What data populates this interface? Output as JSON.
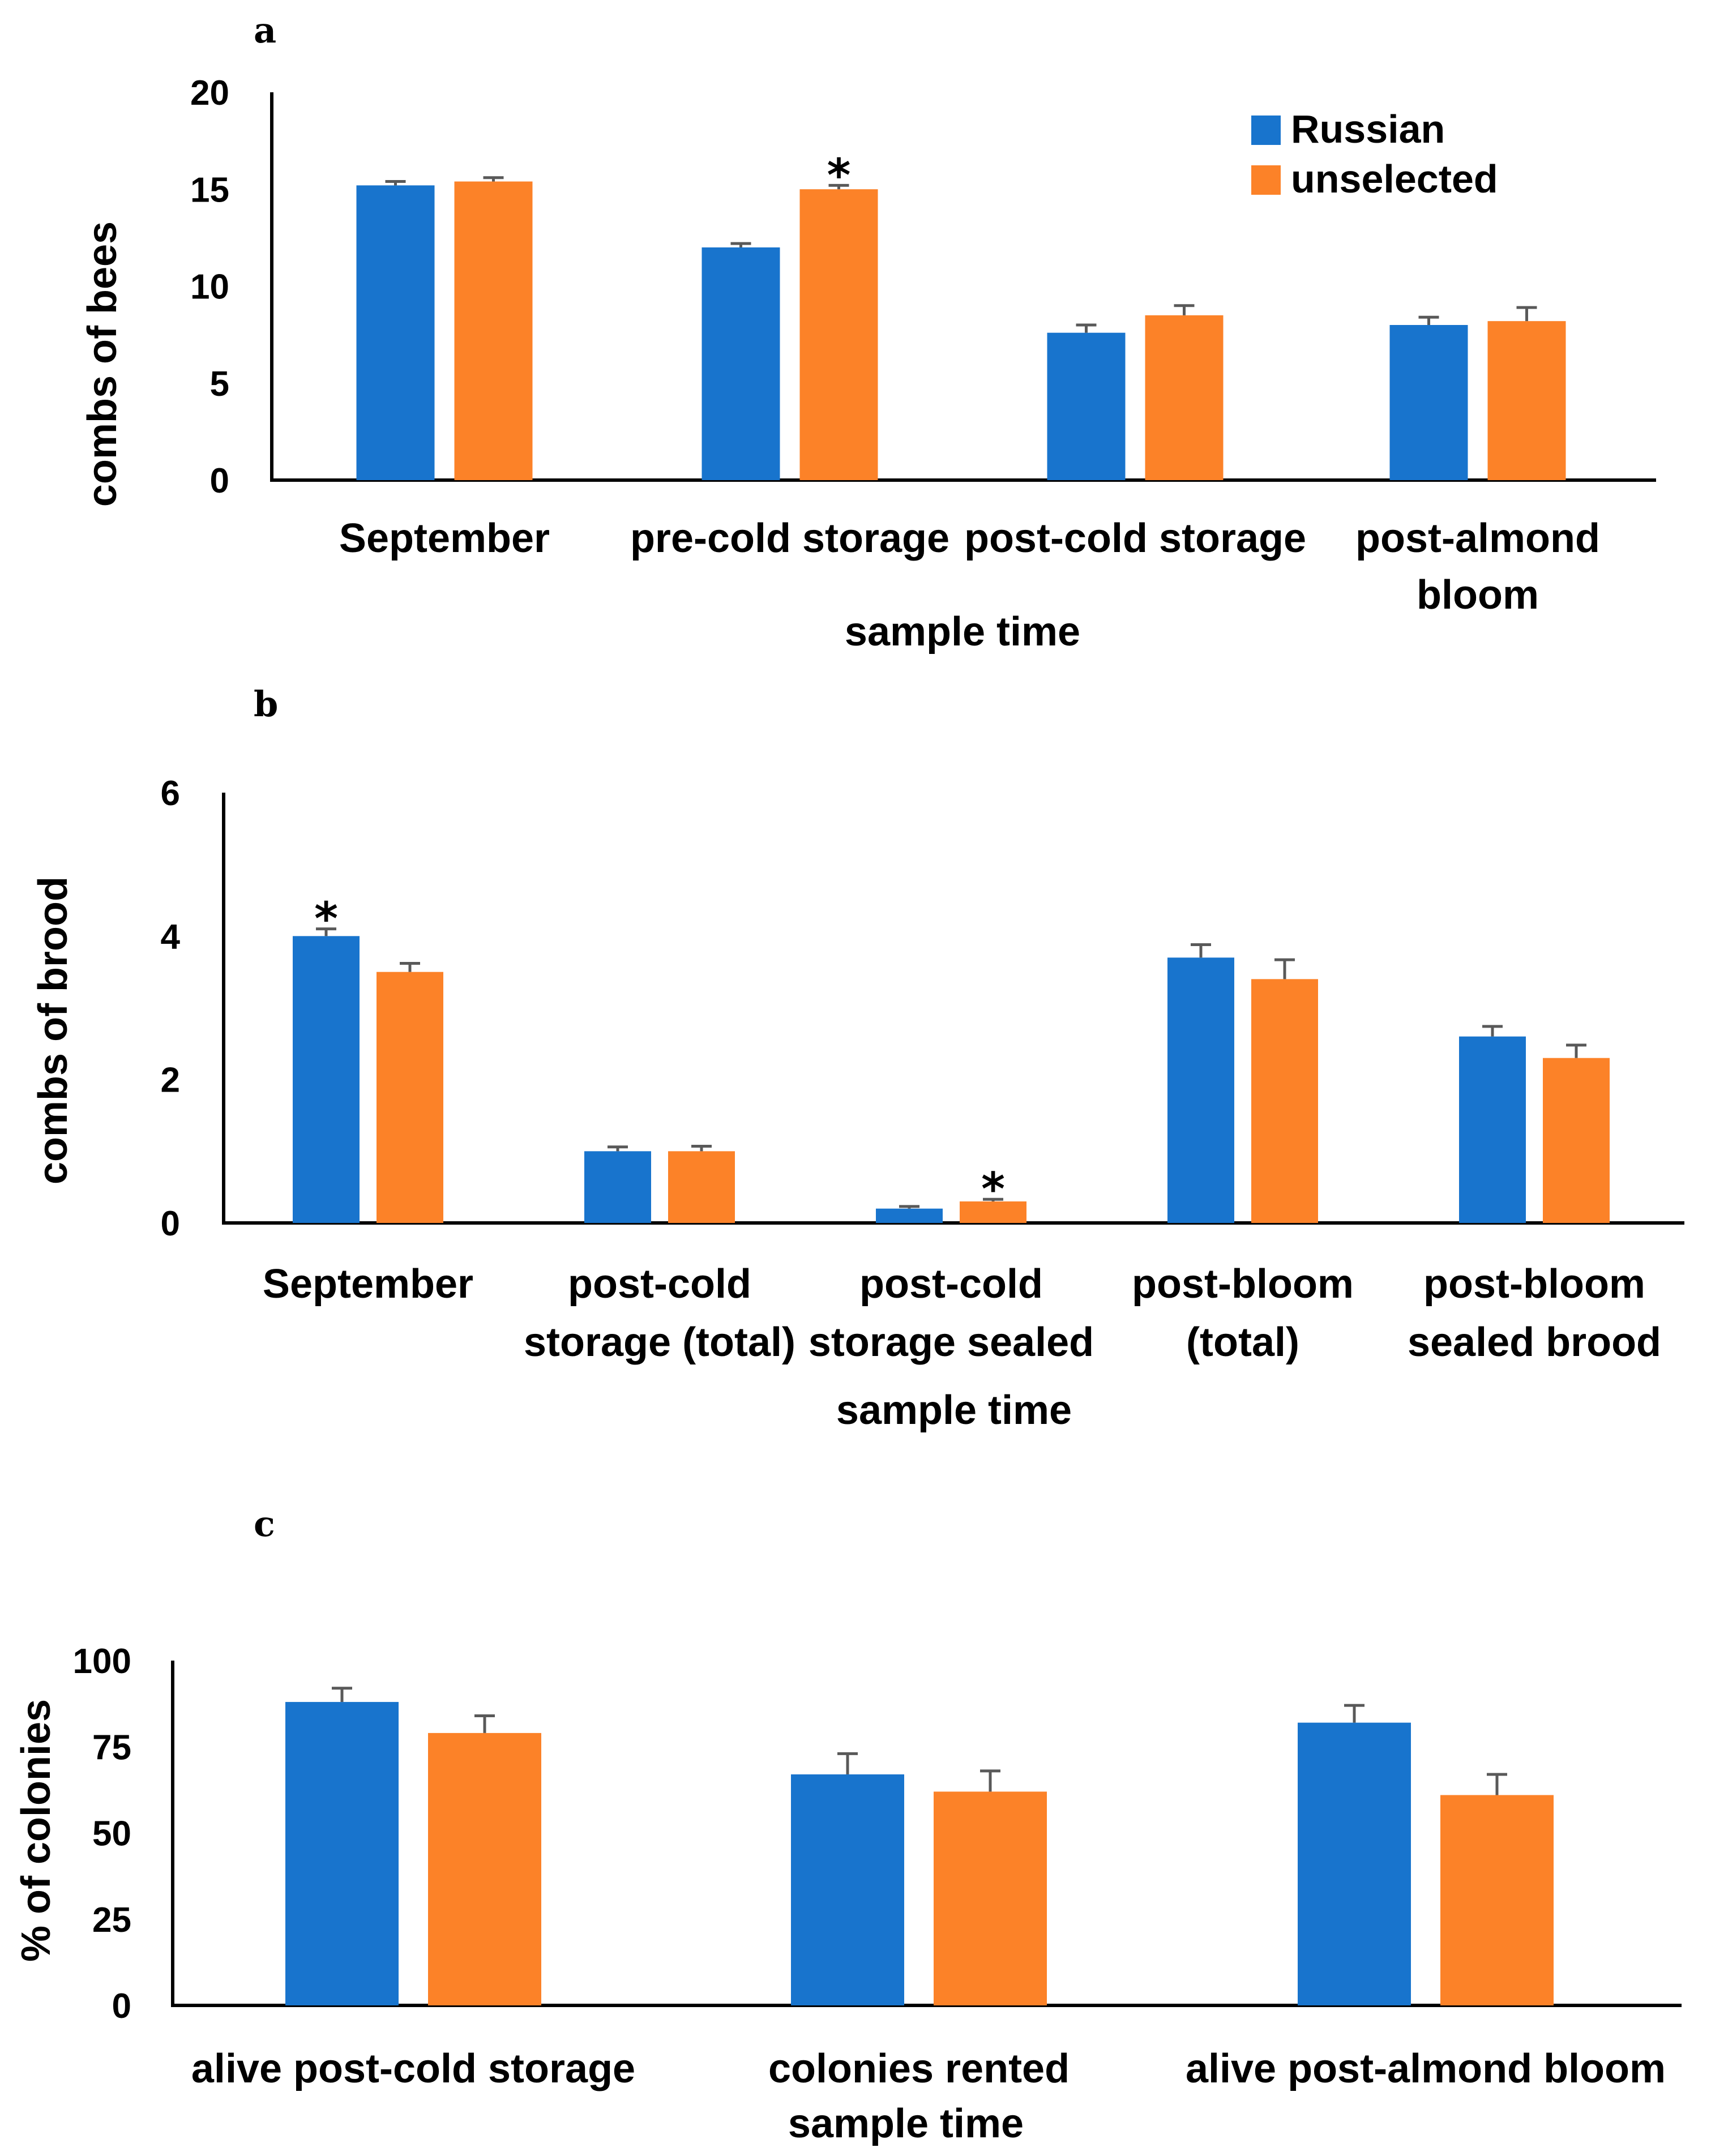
{
  "colors": {
    "russian": "#1874cd",
    "unselected": "#fc8228",
    "error": "#595959",
    "axis": "#000000"
  },
  "legend": {
    "russian": "Russian",
    "unselected": "unselected"
  },
  "chart_data": [
    {
      "panel": "a",
      "type": "bar",
      "ylabel": "combs of bees",
      "xlabel": "sample time",
      "ylim": [
        0,
        20
      ],
      "yticks": [
        0,
        5,
        10,
        15,
        20
      ],
      "legend_position": "top-right",
      "categories": [
        [
          "September"
        ],
        [
          "pre-cold storage"
        ],
        [
          "post-cold storage"
        ],
        [
          "post-almond",
          "bloom"
        ]
      ],
      "series": [
        {
          "name": "Russian",
          "values": [
            15.2,
            12.0,
            7.6,
            8.0
          ],
          "errors": [
            0.2,
            0.2,
            0.4,
            0.4
          ]
        },
        {
          "name": "unselected",
          "values": [
            15.4,
            15.0,
            8.5,
            8.2
          ],
          "errors": [
            0.2,
            0.2,
            0.5,
            0.7
          ]
        }
      ],
      "significance": [
        {
          "category": 1,
          "series": 1,
          "symbol": "*"
        }
      ]
    },
    {
      "panel": "b",
      "type": "bar",
      "ylabel": "combs of brood",
      "xlabel": "sample time",
      "ylim": [
        0,
        6
      ],
      "yticks": [
        0,
        2,
        4,
        6
      ],
      "categories": [
        [
          "September"
        ],
        [
          "post-cold",
          "storage (total)"
        ],
        [
          "post-cold",
          "storage sealed"
        ],
        [
          "post-bloom",
          "(total)"
        ],
        [
          "post-bloom",
          "sealed brood"
        ]
      ],
      "series": [
        {
          "name": "Russian",
          "values": [
            4.0,
            1.0,
            0.2,
            3.7,
            2.6
          ],
          "errors": [
            0.1,
            0.06,
            0.03,
            0.18,
            0.14
          ]
        },
        {
          "name": "unselected",
          "values": [
            3.5,
            1.0,
            0.3,
            3.4,
            2.3
          ],
          "errors": [
            0.12,
            0.07,
            0.03,
            0.27,
            0.18
          ]
        }
      ],
      "significance": [
        {
          "category": 0,
          "series": 0,
          "symbol": "*"
        },
        {
          "category": 2,
          "series": 1,
          "symbol": "*"
        }
      ]
    },
    {
      "panel": "c",
      "type": "bar",
      "ylabel": "% of colonies",
      "xlabel": "sample time",
      "ylim": [
        0,
        100
      ],
      "yticks": [
        0,
        25,
        50,
        75,
        100
      ],
      "categories": [
        [
          "alive post-cold storage"
        ],
        [
          "colonies rented"
        ],
        [
          "alive post-almond bloom"
        ]
      ],
      "series": [
        {
          "name": "Russian",
          "values": [
            88,
            67,
            82
          ],
          "errors": [
            4,
            6,
            5
          ]
        },
        {
          "name": "unselected",
          "values": [
            79,
            62,
            61
          ],
          "errors": [
            5,
            6,
            6
          ]
        }
      ],
      "significance": []
    }
  ]
}
